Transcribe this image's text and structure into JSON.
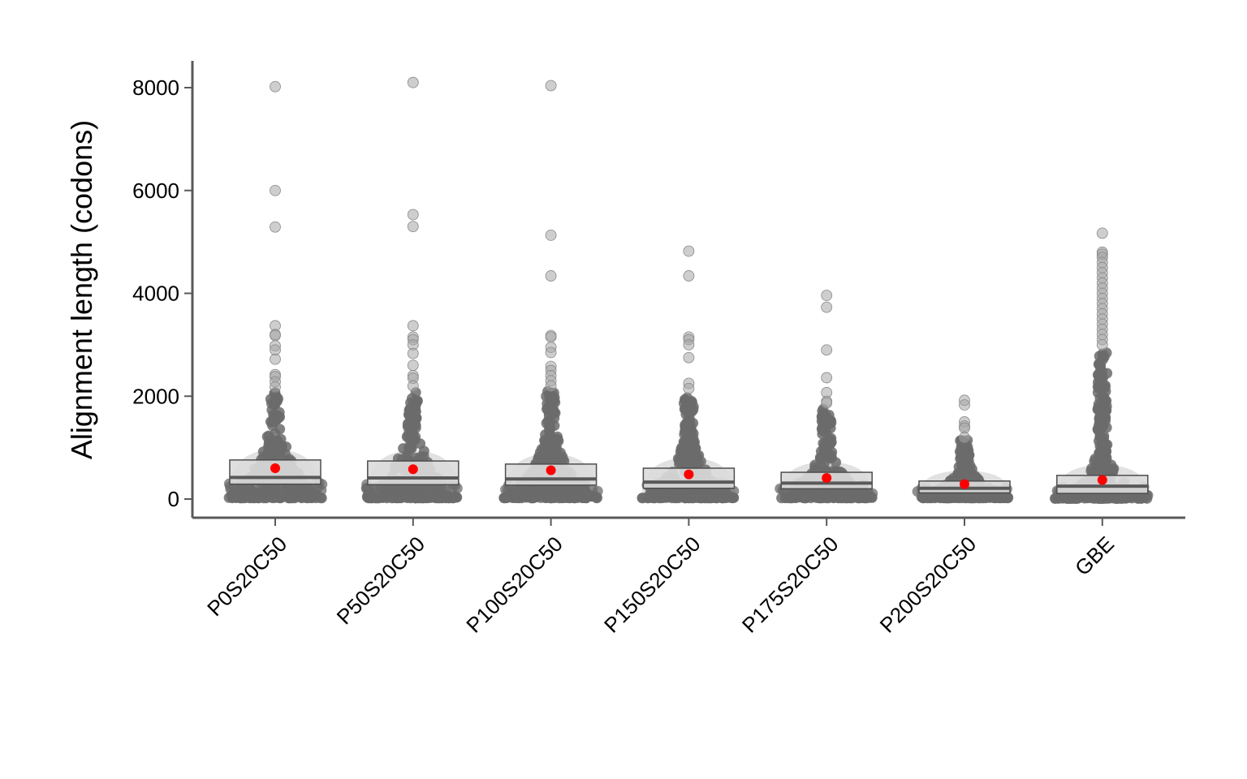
{
  "chart_data": {
    "type": "scatter",
    "subtype": "jittered dot plot with boxplot and mean marker",
    "title": "",
    "xlabel": "",
    "ylabel": "Alignment length (codons)",
    "ylim": [
      -350,
      8500
    ],
    "yticks": [
      0,
      2000,
      4000,
      6000,
      8000
    ],
    "grid": false,
    "legend": "none",
    "categories": [
      "P0S20C50",
      "P50S20C50",
      "P100S20C50",
      "P150S20C50",
      "P175S20C50",
      "P200S20C50",
      "GBE"
    ],
    "box": [
      {
        "q1": 290,
        "median": 420,
        "q3": 760
      },
      {
        "q1": 280,
        "median": 410,
        "q3": 740
      },
      {
        "q1": 270,
        "median": 390,
        "q3": 680
      },
      {
        "q1": 210,
        "median": 330,
        "q3": 600
      },
      {
        "q1": 200,
        "median": 310,
        "q3": 520
      },
      {
        "q1": 120,
        "median": 210,
        "q3": 350
      },
      {
        "q1": 110,
        "median": 250,
        "q3": 460
      }
    ],
    "mean": [
      600,
      580,
      560,
      480,
      410,
      290,
      370
    ],
    "outliers": [
      [
        8020,
        6000,
        5290,
        3370,
        3200,
        3180,
        2980,
        2900,
        2720,
        2420,
        2380,
        2280,
        2180
      ],
      [
        8100,
        5530,
        5300,
        3370,
        3150,
        3100,
        3000,
        2830,
        2600,
        2400,
        2350,
        2200
      ],
      [
        8040,
        5130,
        4340,
        3180,
        3150,
        2950,
        2850,
        2580,
        2500,
        2400,
        2300,
        2200
      ],
      [
        4820,
        4340,
        3150,
        3100,
        3000,
        2750,
        2250,
        2150
      ],
      [
        3960,
        3730,
        2900,
        2360,
        2070,
        1900,
        1870
      ],
      [
        1920,
        1830,
        1500,
        1420,
        1380,
        1200
      ],
      [
        5170,
        4800,
        4760,
        4700,
        4600,
        4500,
        4400,
        4300,
        4200,
        4100,
        4000,
        3900,
        3800,
        3700,
        3600,
        3500,
        3400,
        3300,
        3200,
        3100,
        3000
      ]
    ],
    "dense_range": [
      {
        "min": 20,
        "max": 2100
      },
      {
        "min": 20,
        "max": 2100
      },
      {
        "min": 20,
        "max": 2100
      },
      {
        "min": 20,
        "max": 2000
      },
      {
        "min": 20,
        "max": 1750
      },
      {
        "min": 20,
        "max": 1150
      },
      {
        "min": 10,
        "max": 2850
      }
    ],
    "colors": {
      "points": "#6b6b6b",
      "points_light": "#bdbdbd",
      "box_fill": "#dcdcdc",
      "box_border": "#4d4d4d",
      "mean": "#ff0000",
      "axis": "#595959"
    }
  }
}
